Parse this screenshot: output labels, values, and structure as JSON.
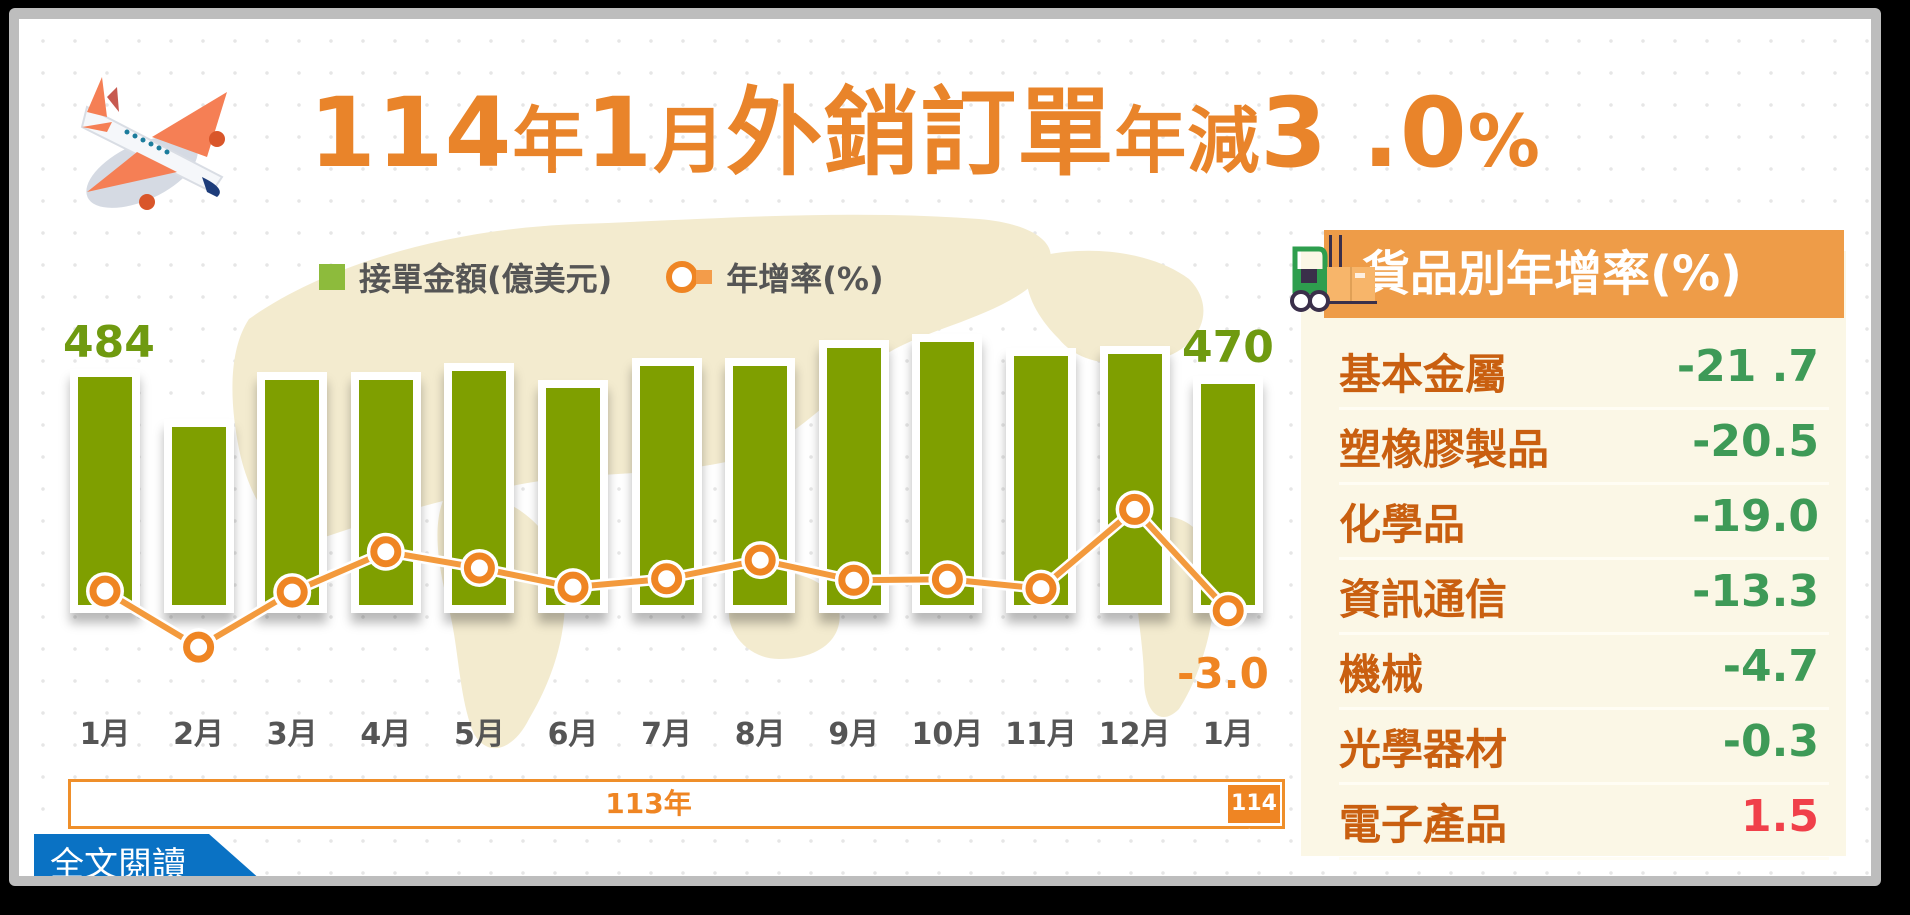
{
  "title": {
    "part1": "114",
    "part2": "年",
    "part3": "1",
    "part4": "月",
    "part5": "外銷訂單",
    "part6": "年減",
    "part7": "3 .0",
    "part8": "%",
    "full": "114年1月外銷訂單年減3 .0%"
  },
  "legend": {
    "bar_label": "接單金額(億美元)",
    "line_label": "年增率(%)"
  },
  "labels": {
    "first_value": "484",
    "last_value": "470",
    "last_growth": "-3.0"
  },
  "months": [
    "1月",
    "2月",
    "3月",
    "4月",
    "5月",
    "6月",
    "7月",
    "8月",
    "9月",
    "10月",
    "11月",
    "12月",
    "1月"
  ],
  "years": {
    "y113": "113年",
    "y114": "114年"
  },
  "panel": {
    "title": "貨品別年增率(%)",
    "rows": [
      {
        "name": "基本金屬",
        "value": "-21 .7"
      },
      {
        "name": "塑橡膠製品",
        "value": "-20.5"
      },
      {
        "name": "化學品",
        "value": "-19.0"
      },
      {
        "name": "資訊通信",
        "value": "-13.3"
      },
      {
        "name": "機械",
        "value": "-4.7"
      },
      {
        "name": "光學器材",
        "value": "-0.3"
      },
      {
        "name": "電子產品",
        "value": "1.5"
      }
    ]
  },
  "read_more": "全文閱讀",
  "colors": {
    "title": "#e9842a",
    "bar": "#7f9f00",
    "line": "#ef8523",
    "negative": "#3e9a57",
    "positive": "#f0404a",
    "category": "#c95f10",
    "link_bg": "#0a72c4"
  },
  "chart_data": [
    {
      "type": "bar+line",
      "title": "114年1月外銷訂單年減3.0%",
      "categories": [
        "113年1月",
        "2月",
        "3月",
        "4月",
        "5月",
        "6月",
        "7月",
        "8月",
        "9月",
        "10月",
        "11月",
        "12月",
        "114年1月"
      ],
      "series": [
        {
          "name": "接單金額(億美元)",
          "type": "bar",
          "values": [
            484,
            378,
            478,
            478,
            497,
            461,
            508,
            508,
            546,
            559,
            529,
            533,
            470
          ]
        },
        {
          "name": "年增率(%)",
          "type": "line",
          "values": [
            1.0,
            -10.4,
            0.8,
            9.0,
            5.7,
            1.8,
            3.5,
            7.3,
            3.2,
            3.4,
            1.5,
            17.6,
            -3.0
          ]
        }
      ],
      "annotations": [
        "484",
        "470",
        "-3.0"
      ],
      "legend_position": "top",
      "grid": false
    },
    {
      "type": "table",
      "title": "貨品別年增率(%)",
      "categories": [
        "基本金屬",
        "塑橡膠製品",
        "化學品",
        "資訊通信",
        "機械",
        "光學器材",
        "電子產品"
      ],
      "values": [
        -21.7,
        -20.5,
        -19.0,
        -13.3,
        -4.7,
        -0.3,
        1.5
      ]
    }
  ]
}
